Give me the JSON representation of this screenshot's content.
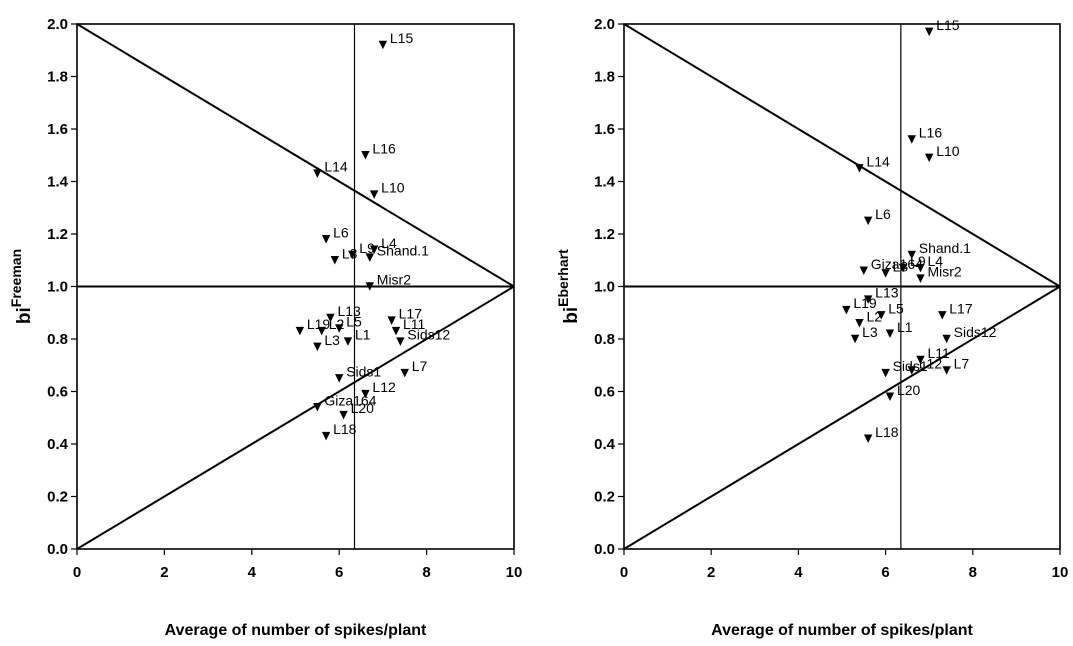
{
  "chart_data": [
    {
      "type": "scatter",
      "ylabel_main": "bi",
      "ylabel_sup": "Freeman",
      "xlabel": "Average of number of spikes/plant",
      "xlim": [
        0,
        10
      ],
      "ylim": [
        0,
        2
      ],
      "xticks": [
        "0",
        "2",
        "4",
        "6",
        "8",
        "10"
      ],
      "yticks": [
        "0.0",
        "0.2",
        "0.4",
        "0.6",
        "0.8",
        "1.0",
        "1.2",
        "1.4",
        "1.6",
        "1.8",
        "2.0"
      ],
      "mean_x": 6.35,
      "reference_y": 1.0,
      "reference_lines": [
        [
          [
            0,
            2.0
          ],
          [
            10,
            1.0
          ]
        ],
        [
          [
            0,
            0.0
          ],
          [
            10,
            1.0
          ]
        ]
      ],
      "points": [
        {
          "label": "L15",
          "x": 7.0,
          "y": 1.92
        },
        {
          "label": "L16",
          "x": 6.6,
          "y": 1.5
        },
        {
          "label": "L14",
          "x": 5.5,
          "y": 1.43
        },
        {
          "label": "L10",
          "x": 6.8,
          "y": 1.35
        },
        {
          "label": "L6",
          "x": 5.7,
          "y": 1.18
        },
        {
          "label": "L4",
          "x": 6.8,
          "y": 1.14
        },
        {
          "label": "L9",
          "x": 6.3,
          "y": 1.12
        },
        {
          "label": "Shand.1",
          "x": 6.7,
          "y": 1.11
        },
        {
          "label": "L8",
          "x": 5.9,
          "y": 1.1
        },
        {
          "label": "Misr2",
          "x": 6.7,
          "y": 1.0
        },
        {
          "label": "L13",
          "x": 5.8,
          "y": 0.88
        },
        {
          "label": "L17",
          "x": 7.2,
          "y": 0.87
        },
        {
          "label": "L5",
          "x": 6.0,
          "y": 0.84
        },
        {
          "label": "L19",
          "x": 5.1,
          "y": 0.83
        },
        {
          "label": "L2",
          "x": 5.6,
          "y": 0.83
        },
        {
          "label": "L11",
          "x": 7.3,
          "y": 0.83
        },
        {
          "label": "Sids12",
          "x": 7.4,
          "y": 0.79
        },
        {
          "label": "L1",
          "x": 6.2,
          "y": 0.79
        },
        {
          "label": "L3",
          "x": 5.5,
          "y": 0.77
        },
        {
          "label": "Sids1",
          "x": 6.0,
          "y": 0.65
        },
        {
          "label": "L7",
          "x": 7.5,
          "y": 0.67
        },
        {
          "label": "L12",
          "x": 6.6,
          "y": 0.59
        },
        {
          "label": "Giza164",
          "x": 5.5,
          "y": 0.54
        },
        {
          "label": "L20",
          "x": 6.1,
          "y": 0.51
        },
        {
          "label": "L18",
          "x": 5.7,
          "y": 0.43
        }
      ]
    },
    {
      "type": "scatter",
      "ylabel_main": "bi",
      "ylabel_sup": "Eberhart",
      "xlabel": "Average of number of spikes/plant",
      "xlim": [
        0,
        10
      ],
      "ylim": [
        0,
        2
      ],
      "xticks": [
        "0",
        "2",
        "4",
        "6",
        "8",
        "10"
      ],
      "yticks": [
        "0.0",
        "0.2",
        "0.4",
        "0.6",
        "0.8",
        "1.0",
        "1.2",
        "1.4",
        "1.6",
        "1.8",
        "2.0"
      ],
      "mean_x": 6.35,
      "reference_y": 1.0,
      "reference_lines": [
        [
          [
            0,
            2.0
          ],
          [
            10,
            1.0
          ]
        ],
        [
          [
            0,
            0.0
          ],
          [
            10,
            1.0
          ]
        ]
      ],
      "points": [
        {
          "label": "L15",
          "x": 7.0,
          "y": 1.97
        },
        {
          "label": "L16",
          "x": 6.6,
          "y": 1.56
        },
        {
          "label": "L10",
          "x": 7.0,
          "y": 1.49
        },
        {
          "label": "L14",
          "x": 5.4,
          "y": 1.45
        },
        {
          "label": "L6",
          "x": 5.6,
          "y": 1.25
        },
        {
          "label": "Shand.1",
          "x": 6.6,
          "y": 1.12
        },
        {
          "label": "L9",
          "x": 6.4,
          "y": 1.07
        },
        {
          "label": "L4",
          "x": 6.8,
          "y": 1.07
        },
        {
          "label": "Giza164",
          "x": 5.5,
          "y": 1.06
        },
        {
          "label": "L8",
          "x": 6.0,
          "y": 1.05
        },
        {
          "label": "Misr2",
          "x": 6.8,
          "y": 1.03
        },
        {
          "label": "L13",
          "x": 5.6,
          "y": 0.95
        },
        {
          "label": "L17",
          "x": 7.3,
          "y": 0.89
        },
        {
          "label": "L19",
          "x": 5.1,
          "y": 0.91
        },
        {
          "label": "L5",
          "x": 5.9,
          "y": 0.89
        },
        {
          "label": "L2",
          "x": 5.4,
          "y": 0.86
        },
        {
          "label": "L1",
          "x": 6.1,
          "y": 0.82
        },
        {
          "label": "Sids12",
          "x": 7.4,
          "y": 0.8
        },
        {
          "label": "L3",
          "x": 5.3,
          "y": 0.8
        },
        {
          "label": "L11",
          "x": 6.8,
          "y": 0.72
        },
        {
          "label": "L12",
          "x": 6.6,
          "y": 0.68
        },
        {
          "label": "L7",
          "x": 7.4,
          "y": 0.68
        },
        {
          "label": "Sids1",
          "x": 6.0,
          "y": 0.67
        },
        {
          "label": "L20",
          "x": 6.1,
          "y": 0.58
        },
        {
          "label": "L18",
          "x": 5.6,
          "y": 0.42
        }
      ]
    }
  ]
}
